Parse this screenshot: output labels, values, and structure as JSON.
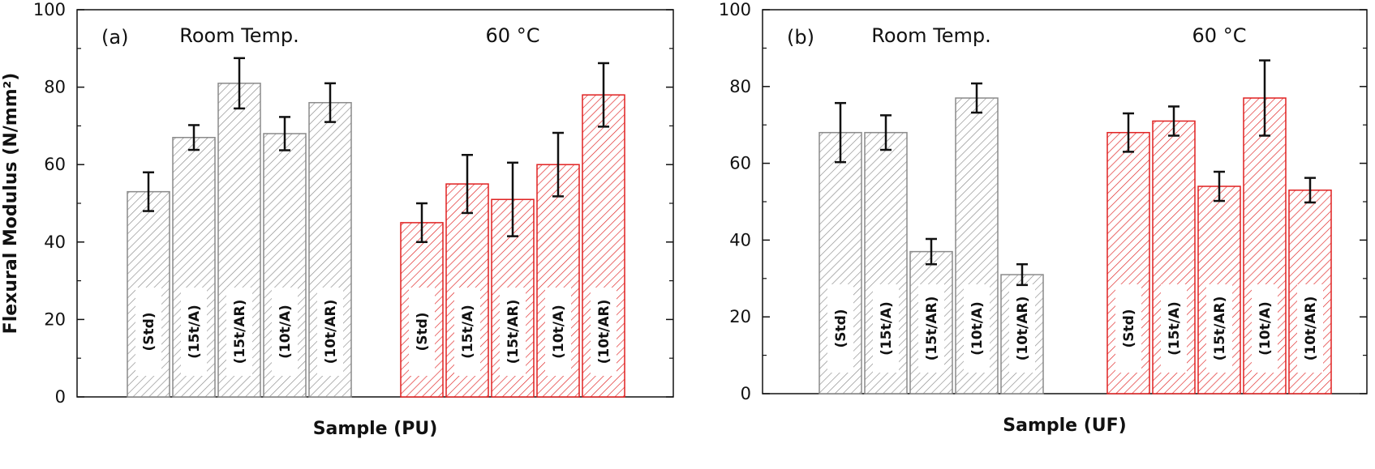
{
  "chart_data": [
    {
      "type": "bar",
      "panel_label": "(a)",
      "xlabel": "Sample (PU)",
      "ylabel": "Flexural Modulus (N/mm²)",
      "ylim": [
        0,
        100
      ],
      "yticks": [
        0,
        20,
        40,
        60,
        80,
        100
      ],
      "grid": false,
      "groups": [
        {
          "name": "Room Temp.",
          "color": "#8a8a8a",
          "categories": [
            "(Std)",
            "(15t/A)",
            "(15t/AR)",
            "(10t/A)",
            "(10t/AR)"
          ],
          "values": [
            53,
            67,
            81,
            68,
            76
          ],
          "errors": [
            5,
            3.2,
            6.5,
            4.3,
            5
          ]
        },
        {
          "name": "60 °C",
          "color": "#e02020",
          "categories": [
            "(Std)",
            "(15t/A)",
            "(15t/AR)",
            "(10t/A)",
            "(10t/AR)"
          ],
          "values": [
            45,
            55,
            51,
            60,
            78
          ],
          "errors": [
            5,
            7.5,
            9.5,
            8.2,
            8.2
          ]
        }
      ]
    },
    {
      "type": "bar",
      "panel_label": "(b)",
      "xlabel": "Sample (UF)",
      "ylabel": "",
      "ylim": [
        0,
        100
      ],
      "yticks": [
        0,
        20,
        40,
        60,
        80,
        100
      ],
      "grid": false,
      "groups": [
        {
          "name": "Room Temp.",
          "color": "#8a8a8a",
          "categories": [
            "(Std)",
            "(15t/A)",
            "(15t/AR)",
            "(10t/A)",
            "(10t/AR)"
          ],
          "values": [
            68,
            68,
            37,
            77,
            31
          ],
          "errors": [
            7.7,
            4.5,
            3.3,
            3.8,
            2.7
          ]
        },
        {
          "name": "60 °C",
          "color": "#e02020",
          "categories": [
            "(Std)",
            "(15t/A)",
            "(15t/AR)",
            "(10t/A)",
            "(10t/AR)"
          ],
          "values": [
            68,
            71,
            54,
            77,
            53
          ],
          "errors": [
            5,
            3.8,
            3.8,
            9.8,
            3.2
          ]
        }
      ]
    }
  ]
}
